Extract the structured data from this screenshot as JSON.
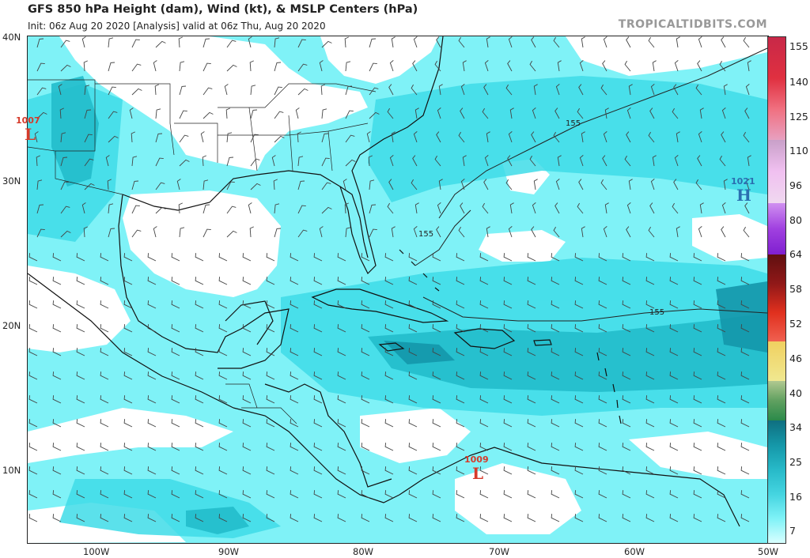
{
  "header": {
    "title": "GFS 850 hPa Height (dam), Wind (kt), & MSLP Centers (hPa)",
    "subtitle": "Init: 06z Aug 20 2020   [Analysis]   valid at 06z Thu, Aug 20 2020",
    "credit": "TROPICALTIDBITS.COM"
  },
  "axes": {
    "lat_labels": [
      "40N",
      "30N",
      "20N",
      "10N"
    ],
    "lon_labels": [
      "100W",
      "90W",
      "80W",
      "70W",
      "60W",
      "50W"
    ]
  },
  "colorbar": {
    "ticks": [
      "155",
      "140",
      "125",
      "110",
      "96",
      "80",
      "64",
      "58",
      "52",
      "46",
      "40",
      "34",
      "25",
      "16",
      "7"
    ],
    "colors": {
      "light_cyan": "#7ff7ff",
      "cyan": "#36e0ea",
      "teal": "#1fb6c7",
      "dark_teal": "#0f8aa0",
      "green": "#3ca55c",
      "yellow": "#f0e070",
      "red": "#e0301e",
      "maroon": "#7a1010",
      "purple": "#a040e0",
      "pink": "#f0b0e0"
    }
  },
  "pressure_centers": [
    {
      "value": "1007",
      "symbol": "L",
      "color": "#d63a2a"
    },
    {
      "value": "1021",
      "symbol": "H",
      "color": "#2a6fb0"
    },
    {
      "value": "1009",
      "symbol": "L",
      "color": "#d63a2a"
    }
  ],
  "contour_labels": [
    "155",
    "155",
    "155"
  ],
  "map_colors": {
    "wind_light": "#7ff2f7",
    "wind_mid": "#3edce8",
    "wind_strong": "#22bccb",
    "wind_core": "#1497ab",
    "coast": "#111111",
    "barb": "#444444"
  }
}
